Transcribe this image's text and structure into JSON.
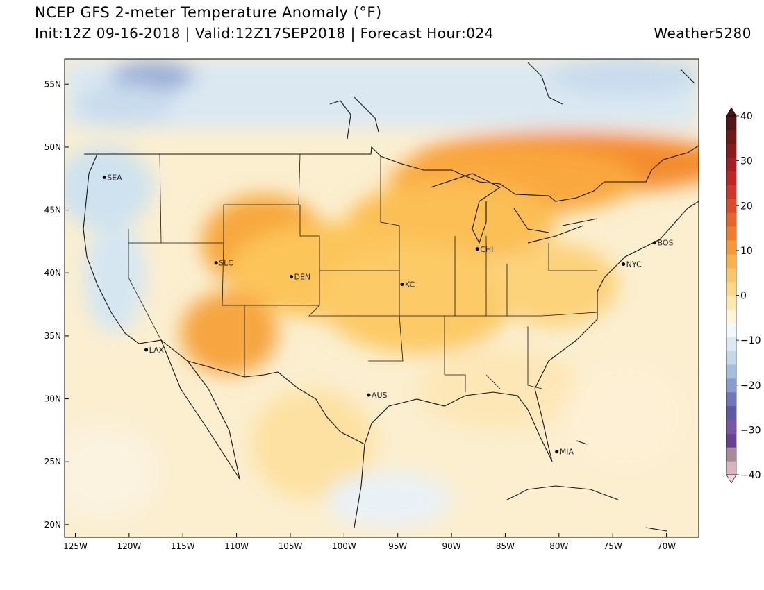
{
  "header": {
    "title": "NCEP GFS 2-meter Temperature Anomaly (°F)",
    "subtitle": "Init:12Z 09-16-2018 | Valid:12Z17SEP2018 | Forecast Hour:024",
    "brand": "Weather5280"
  },
  "map": {
    "lon_range": [
      -126.0,
      -67.0
    ],
    "lat_range": [
      19.0,
      57.0
    ],
    "lat_ticks": [
      {
        "value": 55,
        "label": "55N"
      },
      {
        "value": 50,
        "label": "50N"
      },
      {
        "value": 45,
        "label": "45N"
      },
      {
        "value": 40,
        "label": "40N"
      },
      {
        "value": 35,
        "label": "35N"
      },
      {
        "value": 30,
        "label": "30N"
      },
      {
        "value": 25,
        "label": "25N"
      },
      {
        "value": 20,
        "label": "20N"
      }
    ],
    "lon_ticks": [
      {
        "value": -125,
        "label": "125W"
      },
      {
        "value": -120,
        "label": "120W"
      },
      {
        "value": -115,
        "label": "115W"
      },
      {
        "value": -110,
        "label": "110W"
      },
      {
        "value": -105,
        "label": "105W"
      },
      {
        "value": -100,
        "label": "100W"
      },
      {
        "value": -95,
        "label": "95W"
      },
      {
        "value": -90,
        "label": "90W"
      },
      {
        "value": -85,
        "label": "85W"
      },
      {
        "value": -80,
        "label": "80W"
      },
      {
        "value": -75,
        "label": "75W"
      },
      {
        "value": -70,
        "label": "70W"
      }
    ],
    "cities": [
      {
        "name": "SEA",
        "lon": -122.3,
        "lat": 47.6
      },
      {
        "name": "SLC",
        "lon": -111.9,
        "lat": 40.8
      },
      {
        "name": "DEN",
        "lon": -104.9,
        "lat": 39.7
      },
      {
        "name": "KC",
        "lon": -94.6,
        "lat": 39.1
      },
      {
        "name": "CHI",
        "lon": -87.6,
        "lat": 41.9
      },
      {
        "name": "NYC",
        "lon": -74.0,
        "lat": 40.7
      },
      {
        "name": "BOS",
        "lon": -71.1,
        "lat": 42.4
      },
      {
        "name": "LAX",
        "lon": -118.4,
        "lat": 33.9
      },
      {
        "name": "AUS",
        "lon": -97.7,
        "lat": 30.3
      },
      {
        "name": "MIA",
        "lon": -80.2,
        "lat": 25.8
      }
    ]
  },
  "colorbar": {
    "labels": [
      {
        "value": 40,
        "label": "40"
      },
      {
        "value": 30,
        "label": "30"
      },
      {
        "value": 20,
        "label": "20"
      },
      {
        "value": 10,
        "label": "10"
      },
      {
        "value": 0,
        "label": "0"
      },
      {
        "value": -10,
        "label": "−10"
      },
      {
        "value": -20,
        "label": "−20"
      },
      {
        "value": -30,
        "label": "−30"
      },
      {
        "value": -40,
        "label": "−40"
      }
    ],
    "colors": [
      "#d7b4c0",
      "#a98a99",
      "#6b3f97",
      "#7a56a6",
      "#5d5aa8",
      "#6f76bc",
      "#8a9ccf",
      "#a6bede",
      "#c3d7e9",
      "#dde9f2",
      "#f3f8fb",
      "#fff6d8",
      "#fee9ad",
      "#fdd987",
      "#fcc566",
      "#fbb04a",
      "#f79837",
      "#f17d2c",
      "#e8642a",
      "#de4b2a",
      "#d03529",
      "#c02425",
      "#a71d22",
      "#8a1a1c",
      "#6e1a18",
      "#561414"
    ]
  }
}
